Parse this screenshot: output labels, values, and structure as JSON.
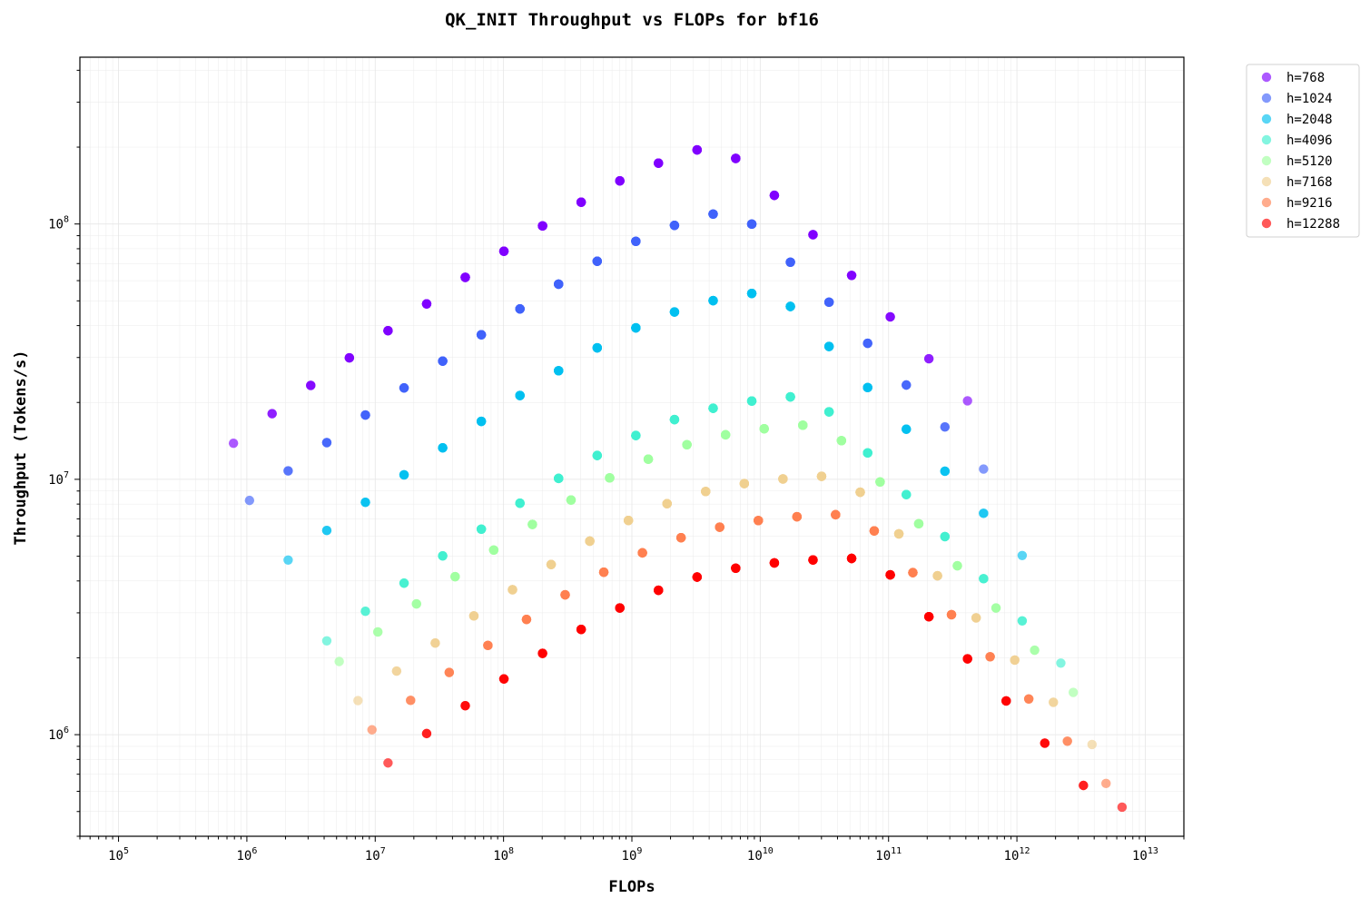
{
  "chart_data": {
    "type": "scatter",
    "title": "QK_INIT Throughput vs FLOPs for bf16",
    "xlabel": "FLOPs",
    "ylabel": "Throughput (Tokens/s)",
    "xscale": "log",
    "yscale": "log",
    "xlim": [
      50000,
      20000000000000
    ],
    "ylim": [
      400000,
      450000000
    ],
    "x_ticks": [
      {
        "base": "10",
        "exp": "5"
      },
      {
        "base": "10",
        "exp": "6"
      },
      {
        "base": "10",
        "exp": "7"
      },
      {
        "base": "10",
        "exp": "8"
      },
      {
        "base": "10",
        "exp": "9"
      },
      {
        "base": "10",
        "exp": "10"
      },
      {
        "base": "10",
        "exp": "11"
      },
      {
        "base": "10",
        "exp": "12"
      },
      {
        "base": "10",
        "exp": "13"
      }
    ],
    "y_ticks": [
      {
        "base": "10",
        "exp": "6"
      },
      {
        "base": "10",
        "exp": "7"
      },
      {
        "base": "10",
        "exp": "8"
      }
    ],
    "grid": true,
    "legend_position": "outside-right-top",
    "series": [
      {
        "name": "h=768",
        "color": "#8000ff"
      },
      {
        "name": "h=1024",
        "color": "#4062fa"
      },
      {
        "name": "h=2048",
        "color": "#00c0f0"
      },
      {
        "name": "h=4096",
        "color": "#40f0d0"
      },
      {
        "name": "h=5120",
        "color": "#a0ffa0"
      },
      {
        "name": "h=7168",
        "color": "#f0d090"
      },
      {
        "name": "h=9216",
        "color": "#ff8050"
      },
      {
        "name": "h=12288",
        "color": "#ff0000"
      }
    ]
  }
}
